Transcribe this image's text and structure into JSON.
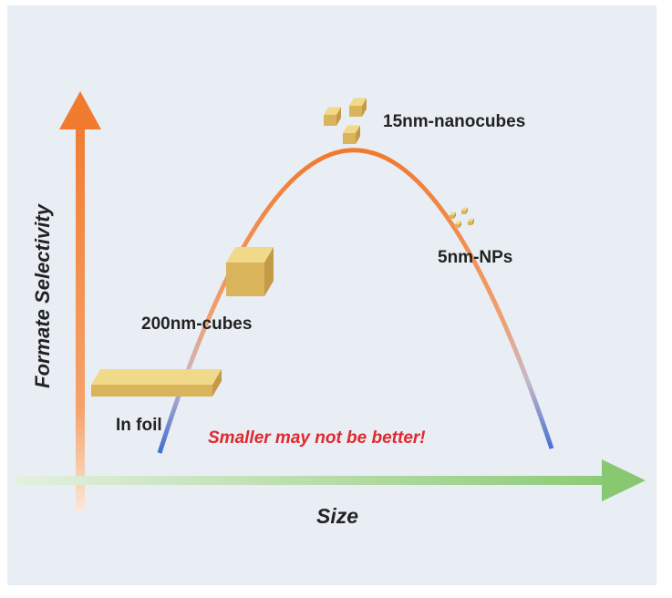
{
  "axes": {
    "y_label": "Formate Selectivity",
    "x_label": "Size"
  },
  "points": [
    {
      "label": "In foil"
    },
    {
      "label": "200nm-cubes"
    },
    {
      "label": "15nm-nanocubes"
    },
    {
      "label": "5nm-NPs"
    }
  ],
  "annotation": "Smaller may not be better!"
}
